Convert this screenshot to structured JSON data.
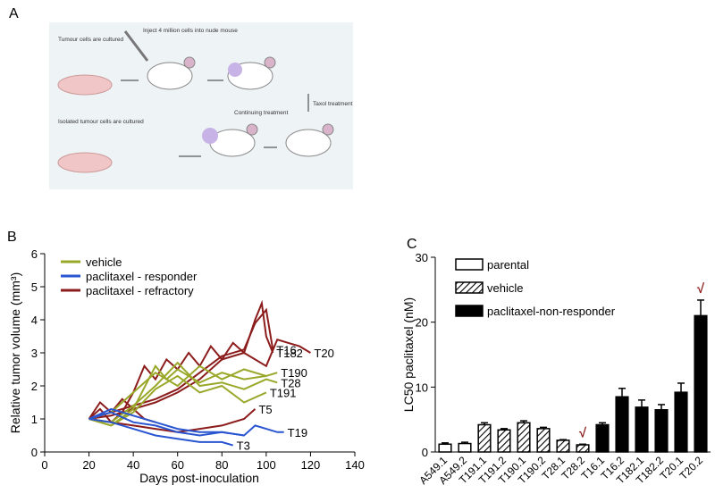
{
  "panel_labels": [
    "A",
    "B",
    "C"
  ],
  "diagram": {
    "steps": [
      "Tumour cells are cultured",
      "Inject 4 million cells into nude mouse",
      "Taxol treatment",
      "Continuing treatment",
      "Isolated tumour cells are cultured"
    ]
  },
  "chart_data": [
    {
      "type": "line",
      "xlabel": "Days post-inoculation",
      "ylabel": "Relative tumor volume (mm³)",
      "xlim": [
        0,
        140
      ],
      "xticks": [
        0,
        20,
        40,
        60,
        80,
        100,
        120,
        140
      ],
      "ylim": [
        0,
        6
      ],
      "yticks": [
        0,
        1,
        2,
        3,
        4,
        5,
        6
      ],
      "legend": [
        {
          "name": "vehicle",
          "color": "#9aa82a"
        },
        {
          "name": "paclitaxel - responder",
          "color": "#2a55d0"
        },
        {
          "name": "paclitaxel - refractory",
          "color": "#8c1c1c"
        }
      ],
      "series": [
        {
          "label": "T182",
          "color": "#8c1c1c",
          "x": [
            20,
            25,
            30,
            35,
            40,
            45,
            50,
            55,
            60,
            65,
            70,
            75,
            80,
            85,
            90,
            95,
            98,
            100,
            103
          ],
          "y": [
            1,
            1.3,
            0.9,
            1.2,
            1.8,
            2.6,
            2.2,
            2.8,
            2.5,
            3.0,
            2.6,
            3.2,
            2.8,
            3.3,
            3.0,
            4.0,
            4.5,
            3.5,
            3.0
          ]
        },
        {
          "label": "T16",
          "color": "#8c1c1c",
          "x": [
            20,
            30,
            40,
            50,
            60,
            70,
            80,
            90,
            95,
            100,
            103
          ],
          "y": [
            1,
            1.2,
            1.4,
            1.6,
            1.9,
            2.4,
            2.9,
            3.1,
            3.9,
            4.3,
            3.1
          ]
        },
        {
          "label": "T20",
          "color": "#8c1c1c",
          "x": [
            20,
            30,
            40,
            50,
            60,
            70,
            80,
            90,
            100,
            105,
            110,
            115,
            120
          ],
          "y": [
            1,
            1.1,
            1.3,
            1.5,
            1.8,
            2.2,
            2.8,
            3.0,
            2.6,
            3.4,
            3.3,
            3.2,
            3.0
          ]
        },
        {
          "label": "T5",
          "color": "#8c1c1c",
          "x": [
            20,
            30,
            40,
            50,
            60,
            70,
            80,
            90,
            95
          ],
          "y": [
            1,
            0.9,
            0.8,
            0.7,
            0.6,
            0.7,
            0.8,
            1.0,
            1.3
          ]
        },
        {
          "color": "#8c1c1c",
          "x": [
            20,
            25,
            30,
            35,
            40,
            45,
            50
          ],
          "y": [
            1,
            1.5,
            1.2,
            1.6,
            1.3,
            1.0,
            0.9
          ]
        },
        {
          "label": "T190",
          "color": "#9aa82a",
          "x": [
            20,
            30,
            40,
            50,
            55,
            60,
            70,
            80,
            90,
            100,
            105
          ],
          "y": [
            1,
            0.8,
            1.3,
            2.6,
            2.2,
            2.5,
            2.1,
            2.4,
            2.2,
            2.3,
            2.4
          ]
        },
        {
          "label": "T28",
          "color": "#9aa82a",
          "x": [
            20,
            30,
            40,
            50,
            60,
            70,
            80,
            90,
            100,
            105
          ],
          "y": [
            1,
            0.9,
            1.4,
            2.0,
            2.7,
            2.0,
            2.1,
            1.9,
            2.2,
            2.1
          ]
        },
        {
          "label": "T191",
          "color": "#9aa82a",
          "x": [
            20,
            30,
            40,
            50,
            60,
            70,
            80,
            90,
            100
          ],
          "y": [
            1,
            0.8,
            1.2,
            1.9,
            2.3,
            1.8,
            2.0,
            1.5,
            1.8
          ]
        },
        {
          "color": "#9aa82a",
          "x": [
            20,
            30,
            40,
            50,
            60,
            70,
            80,
            90,
            100
          ],
          "y": [
            1,
            1.2,
            1.8,
            2.4,
            2.0,
            2.6,
            2.2,
            2.5,
            2.3
          ]
        },
        {
          "label": "T19",
          "color": "#2a55d0",
          "x": [
            20,
            30,
            40,
            50,
            60,
            70,
            80,
            90,
            95,
            100,
            105,
            108
          ],
          "y": [
            1,
            1.3,
            1.1,
            0.9,
            0.7,
            0.6,
            0.6,
            0.5,
            0.8,
            0.7,
            0.6,
            0.6
          ]
        },
        {
          "label": "T3",
          "color": "#2a55d0",
          "x": [
            20,
            30,
            40,
            50,
            60,
            70,
            80,
            85
          ],
          "y": [
            1,
            0.9,
            0.7,
            0.5,
            0.4,
            0.3,
            0.3,
            0.2
          ]
        },
        {
          "color": "#2a55d0",
          "x": [
            20,
            30,
            40,
            50,
            60,
            70,
            80,
            90
          ],
          "y": [
            1,
            1.2,
            0.9,
            0.8,
            0.6,
            0.5,
            0.6,
            0.5
          ]
        }
      ]
    },
    {
      "type": "bar",
      "ylabel": "LC50 paclitaxel (nM)",
      "ylim": [
        0,
        30
      ],
      "yticks": [
        0,
        10,
        20,
        30
      ],
      "categories": [
        "A549.1",
        "A549.2",
        "T191.1",
        "T191.2",
        "T190.1",
        "T190.2",
        "T28.1",
        "T28.2",
        "T16.1",
        "T16.2",
        "T182.1",
        "T182.2",
        "T20.1",
        "T20.2"
      ],
      "series": [
        {
          "name": "parental",
          "color": "#ffffff",
          "values": [
            1.2,
            1.3,
            null,
            null,
            null,
            null,
            null,
            null,
            null,
            null,
            null,
            null,
            null,
            null
          ]
        },
        {
          "name": "vehicle",
          "color": "hatch",
          "values": [
            null,
            null,
            4.2,
            3.4,
            4.5,
            3.6,
            1.8,
            1.1,
            null,
            null,
            null,
            null,
            null,
            null
          ]
        },
        {
          "name": "paclitaxel-non-responder",
          "color": "#000000",
          "values": [
            null,
            null,
            null,
            null,
            null,
            null,
            null,
            null,
            4.2,
            8.5,
            6.9,
            6.5,
            9.2,
            21
          ]
        }
      ],
      "errors": [
        0.2,
        0.2,
        0.3,
        0.2,
        0.3,
        0.2,
        0.1,
        0.1,
        0.3,
        1.3,
        1.1,
        0.8,
        1.4,
        2.4
      ],
      "annotations": [
        {
          "text": "√",
          "category": "T28.2"
        },
        {
          "text": "√",
          "category": "T20.2"
        }
      ]
    }
  ]
}
